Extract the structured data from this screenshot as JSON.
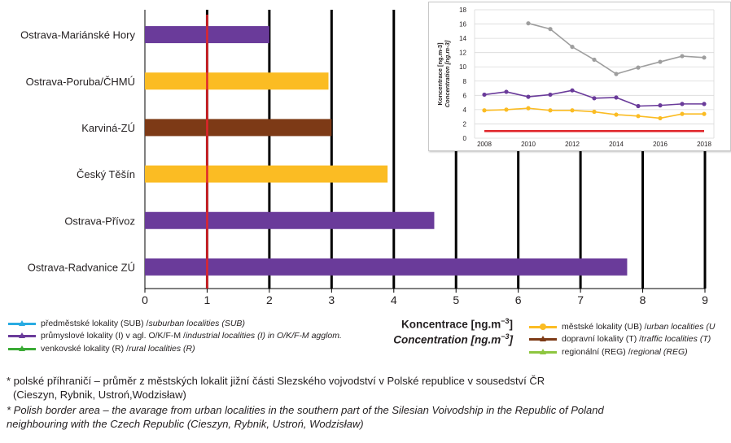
{
  "chart_data": [
    {
      "type": "bar",
      "orientation": "horizontal",
      "categories": [
        "Ostrava-Mariánské Hory",
        "Ostrava-Poruba/ČHMÚ",
        "Karviná-ZÚ",
        "Český Těšín",
        "Ostrava-Přívoz",
        "Ostrava-Radvanice ZÚ"
      ],
      "values": [
        2.0,
        2.95,
        3.0,
        3.9,
        4.65,
        7.75
      ],
      "colors": [
        "#6a3b9a",
        "#fbbc23",
        "#7d3a16",
        "#fbbc23",
        "#6a3b9a",
        "#6a3b9a"
      ],
      "xlim": [
        0,
        9
      ],
      "xticks": [
        "0",
        "1",
        "2",
        "3",
        "4",
        "5",
        "6",
        "7",
        "8",
        "9"
      ],
      "reference_line": {
        "value": 1,
        "color": "#e0252a"
      },
      "grid": true,
      "xlabel_cz": "Koncentrace [ng.m",
      "xlabel_en": "Concentration [ng.m",
      "unit_exp": "−3",
      "unit_close": "]"
    },
    {
      "type": "line",
      "x": [
        2008,
        2009,
        2010,
        2011,
        2012,
        2013,
        2014,
        2015,
        2016,
        2017,
        2018
      ],
      "xticks": [
        "2008",
        "2010",
        "2012",
        "2014",
        "2016",
        "2018"
      ],
      "yticks": [
        "0",
        "2",
        "4",
        "6",
        "8",
        "10",
        "12",
        "14",
        "16",
        "18"
      ],
      "ylim": [
        0,
        18
      ],
      "ylabel_cz": "Koncentrace [ng.m",
      "ylabel_en": "Concentration [ng.m",
      "unit_exp": "−3",
      "unit_close": "]",
      "series": [
        {
          "color": "#9e9e9e",
          "values": [
            null,
            null,
            16.1,
            15.3,
            12.8,
            11.0,
            9.0,
            9.9,
            10.7,
            11.5,
            11.3
          ]
        },
        {
          "color": "#6a3b9a",
          "values": [
            6.1,
            6.5,
            5.8,
            6.1,
            6.7,
            5.6,
            5.7,
            4.5,
            4.6,
            4.8,
            4.8
          ]
        },
        {
          "color": "#fbbc23",
          "values": [
            3.9,
            4.0,
            4.2,
            3.9,
            3.9,
            3.7,
            3.3,
            3.1,
            2.8,
            3.4,
            3.4
          ]
        },
        {
          "color": "#e0252a",
          "values": [
            1,
            1,
            1,
            1,
            1,
            1,
            1,
            1,
            1,
            1,
            1
          ],
          "style": "flat"
        }
      ]
    }
  ],
  "legend_left": [
    {
      "cz": "předměstské lokality (SUB) / ",
      "en": "suburban localities (SUB)",
      "color": "#29abe2",
      "marker": "triangle"
    },
    {
      "cz": "průmyslové lokality (I) v agl. O/K/F-M / ",
      "en": "industrial localities (I) in O/K/F-M agglom.",
      "color": "#6a3b9a",
      "marker": "triangle"
    },
    {
      "cz": "venkovské lokality (R) / ",
      "en": "rural localities (R)",
      "color": "#3aaa35",
      "marker": "triangle"
    }
  ],
  "legend_right": [
    {
      "cz": "městské lokality (UB) / ",
      "en": "urban localities (U",
      "color": "#fbbc23",
      "marker": "dot"
    },
    {
      "cz": "dopravní lokality (T) / ",
      "en": "traffic localities (T)",
      "color": "#7d3a16",
      "marker": "triangle"
    },
    {
      "cz": "regionální (REG) / ",
      "en": "regional (REG)",
      "color": "#8dc63f",
      "marker": "triangle"
    }
  ],
  "notes": {
    "cz_line1": "* polské příhraničí – průměr z městských lokalit jižní části Slezského vojvodství v Polské republice v sousedství ČR",
    "cz_line2": "(Cieszyn, Rybnik, Ustroń,Wodzisław)",
    "en_line1": "* Polish border area – the avarage from urban localities in the southern part of the Silesian Voivodship in the Republic of Poland",
    "en_line2": "neighbouring with the Czech Republic (Cieszyn, Rybnik, Ustroń, Wodzisław)"
  }
}
